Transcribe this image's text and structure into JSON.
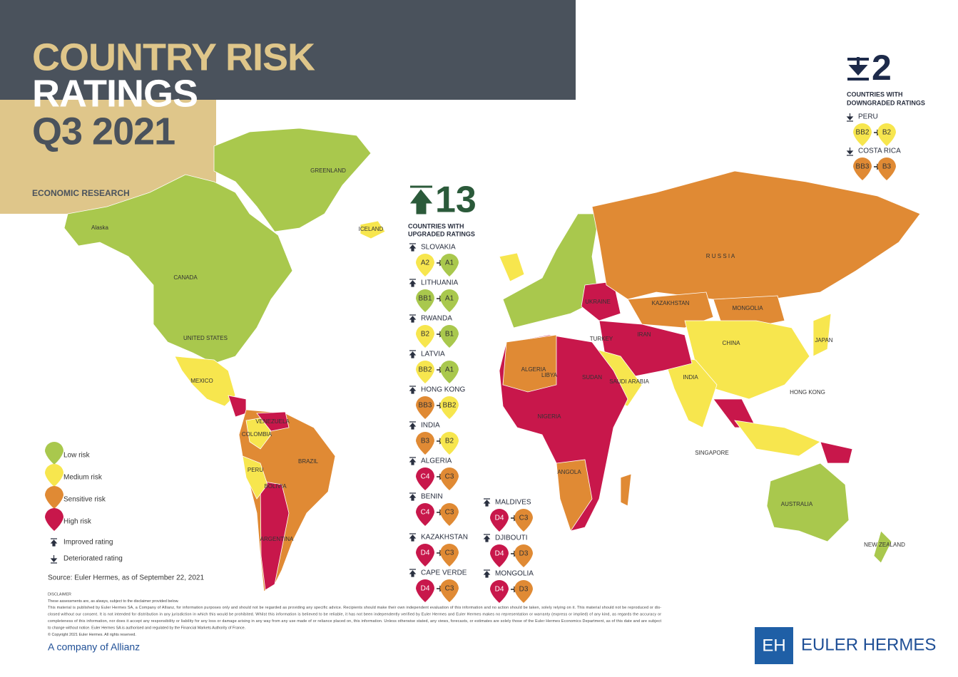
{
  "header": {
    "title_line1": "COUNTRY RISK",
    "title_line2": "RATINGS",
    "title_line3": "Q3 2021",
    "subtitle": "ECONOMIC RESEARCH"
  },
  "upgrades": {
    "count": 13,
    "label_line1": "COUNTRIES WITH",
    "label_line2": "UPGRADED RATINGS",
    "items": [
      {
        "country": "SLOVAKIA",
        "from": "A2",
        "to": "A1",
        "from_color": "#f7e64e",
        "to_color": "#a9c84d"
      },
      {
        "country": "LITHUANIA",
        "from": "BB1",
        "to": "A1",
        "from_color": "#a9c84d",
        "to_color": "#a9c84d"
      },
      {
        "country": "RWANDA",
        "from": "B2",
        "to": "B1",
        "from_color": "#f7e64e",
        "to_color": "#a9c84d"
      },
      {
        "country": "LATVIA",
        "from": "BB2",
        "to": "A1",
        "from_color": "#f7e64e",
        "to_color": "#a9c84d"
      },
      {
        "country": "HONG KONG",
        "from": "BB3",
        "to": "BB2",
        "from_color": "#e08a34",
        "to_color": "#f7e64e"
      },
      {
        "country": "INDIA",
        "from": "B3",
        "to": "B2",
        "from_color": "#e08a34",
        "to_color": "#f7e64e"
      },
      {
        "country": "ALGERIA",
        "from": "C4",
        "to": "C3",
        "from_color": "#c8174b",
        "to_color": "#e08a34"
      },
      {
        "country": "BENIN",
        "from": "C4",
        "to": "C3",
        "from_color": "#c8174b",
        "to_color": "#e08a34"
      },
      {
        "country": "KAZAKHSTAN",
        "from": "D4",
        "to": "C3",
        "from_color": "#c8174b",
        "to_color": "#e08a34"
      },
      {
        "country": "CAPE VERDE",
        "from": "D4",
        "to": "C3",
        "from_color": "#c8174b",
        "to_color": "#e08a34"
      },
      {
        "country": "MALDIVES",
        "from": "D4",
        "to": "C3",
        "from_color": "#c8174b",
        "to_color": "#e08a34"
      },
      {
        "country": "DJIBOUTI",
        "from": "D4",
        "to": "D3",
        "from_color": "#c8174b",
        "to_color": "#e08a34"
      },
      {
        "country": "MONGOLIA",
        "from": "D4",
        "to": "D3",
        "from_color": "#c8174b",
        "to_color": "#e08a34"
      }
    ]
  },
  "downgrades": {
    "count": 2,
    "label_line1": "COUNTRIES WITH",
    "label_line2": "DOWNGRADED RATINGS",
    "items": [
      {
        "country": "PERU",
        "from": "BB2",
        "to": "B2",
        "from_color": "#f7e64e",
        "to_color": "#f7e64e"
      },
      {
        "country": "COSTA RICA",
        "from": "BB3",
        "to": "B3",
        "from_color": "#e08a34",
        "to_color": "#e08a34"
      }
    ]
  },
  "legend": [
    {
      "label": "Low risk",
      "color": "#a9c84d"
    },
    {
      "label": "Medium risk",
      "color": "#f7e64e"
    },
    {
      "label": "Sensitive risk",
      "color": "#e08a34"
    },
    {
      "label": "High risk",
      "color": "#c8174b"
    },
    {
      "label": "Improved rating"
    },
    {
      "label": "Deteriorated rating"
    }
  ],
  "source": "Source: Euler Hermes, as of September 22, 2021",
  "disclaimer": [
    "DISCLAIMER",
    "These assessments are, as always, subject to the disclaimer provided below.",
    "This material is published by Euler Hermes SA, a Company of Allianz, for information purposes only and should not be regarded as providing any specific advice. Recipients should make their own independent evaluation of this information and no action should be taken, solely relying on it. This material should not be reproduced or dis-",
    "closed without our consent. It is not intended for distribution in any jurisdiction in which this would be prohibited. Whilst this information is believed to be reliable, it has not been independently verified by Euler Hermes and Euler Hermes makes no representation or warranty (express or implied) of any kind, as regards the accuracy or",
    "completeness of this information, nor does it accept any responsibility or liability for any loss or damage arising in any way from any use made of or reliance placed on, this information. Unless otherwise stated, any views, forecasts, or estimates are solely those of the Euler Hermes Economics Department, as of this date and are subject",
    "to change without notice. Euler Hermes SA is authorised and regulated by the Financial Markets Authority of France.",
    "© Copyright 2021 Euler Hermes. All rights reserved."
  ],
  "footer": {
    "allianz": "A company of Allianz",
    "logo": "EH",
    "brand": "EULER HERMES"
  },
  "map_labels": [
    "GREENLAND",
    "CANADA",
    "UNITED STATES",
    "Alaska",
    "ICELAND",
    "MEXICO",
    "BRAZIL",
    "ARGENTINA",
    "PERU",
    "BOLIVIA",
    "COLOMBIA",
    "VENEZUELA",
    "R U S S I A",
    "KAZAKHSTAN",
    "MONGOLIA",
    "CHINA",
    "JAPAN",
    "INDIA",
    "IRAN",
    "LIBYA",
    "SUDAN",
    "ALGERIA",
    "NIGERIA",
    "ANGOLA",
    "AUSTRALIA",
    "UKRAINE",
    "TURKEY",
    "SAUDI ARABIA",
    "HONG KONG",
    "SINGAPORE",
    "NEW ZEALAND"
  ]
}
